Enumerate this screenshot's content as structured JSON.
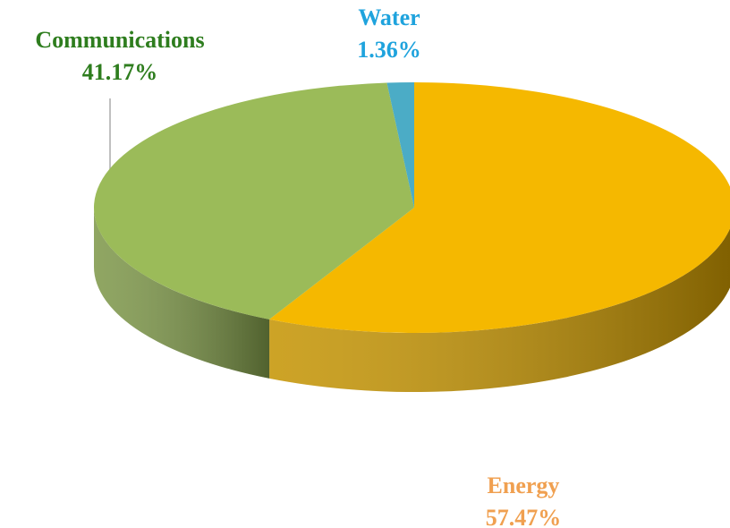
{
  "chart_data": {
    "type": "pie",
    "categories": [
      "Energy",
      "Communications",
      "Water"
    ],
    "values": [
      57.47,
      41.17,
      1.36
    ],
    "value_labels": [
      "57.47%",
      "41.17%",
      "1.36%"
    ],
    "colors": [
      "#f5b800",
      "#9bbb59",
      "#4bacc6"
    ],
    "label_colors": [
      "#f0a050",
      "#2e7d1e",
      "#1fa3dd"
    ]
  }
}
